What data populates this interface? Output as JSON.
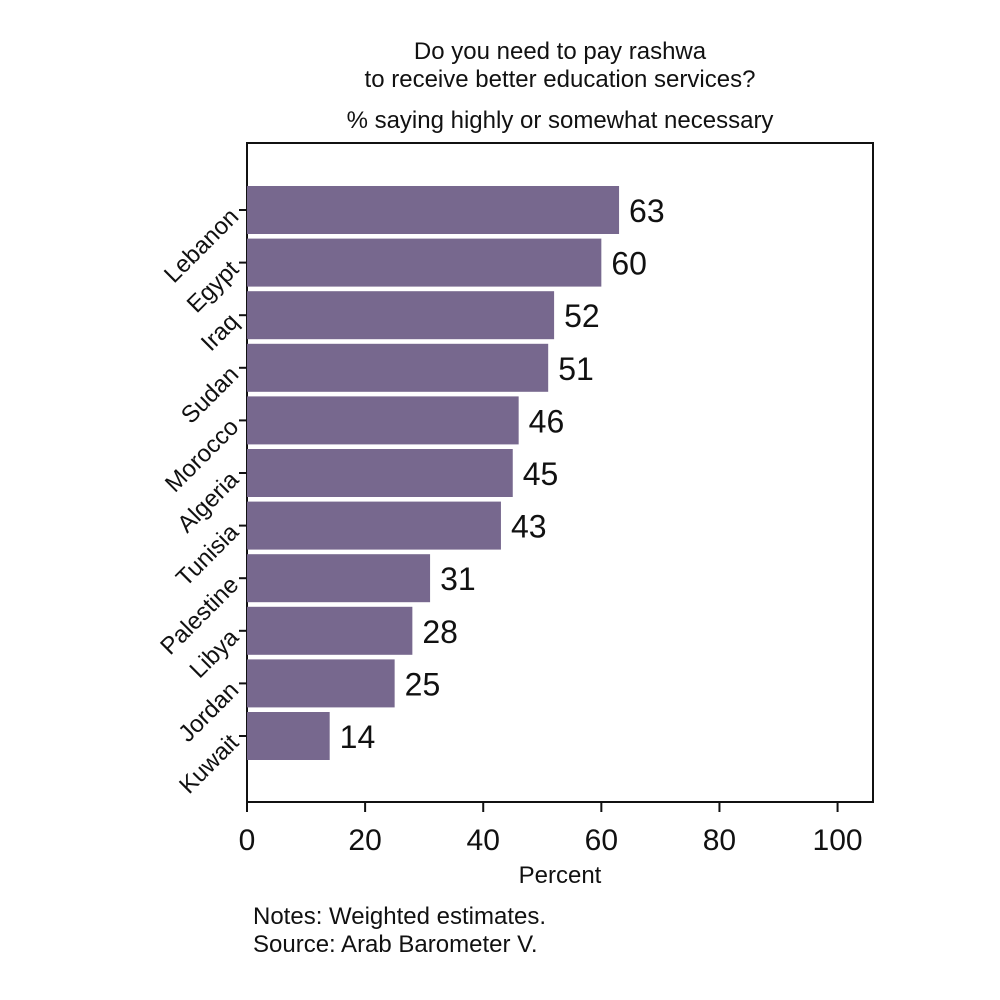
{
  "chart_data": {
    "type": "bar",
    "orientation": "horizontal",
    "title": [
      "Do you need to pay rashwa",
      "to receive better education services?"
    ],
    "subtitle": "% saying highly or somewhat necessary",
    "categories": [
      "Lebanon",
      "Egypt",
      "Iraq",
      "Sudan",
      "Morocco",
      "Algeria",
      "Tunisia",
      "Palestine",
      "Libya",
      "Jordan",
      "Kuwait"
    ],
    "values": [
      63,
      60,
      52,
      51,
      46,
      45,
      43,
      31,
      28,
      25,
      14
    ],
    "data_labels": [
      "63",
      "60",
      "52",
      "51",
      "46",
      "45",
      "43",
      "31",
      "28",
      "25",
      "14"
    ],
    "xlabel": "Percent",
    "ylabel": "",
    "xlim": [
      0,
      106
    ],
    "xticks": [
      0,
      20,
      40,
      60,
      80,
      100
    ],
    "xtick_labels": [
      "0",
      "20",
      "40",
      "60",
      "80",
      "100"
    ],
    "grid": false,
    "bar_color": "#77688e"
  },
  "notes": {
    "line1": "Notes: Weighted estimates.",
    "line2": "Source: Arab Barometer V."
  }
}
